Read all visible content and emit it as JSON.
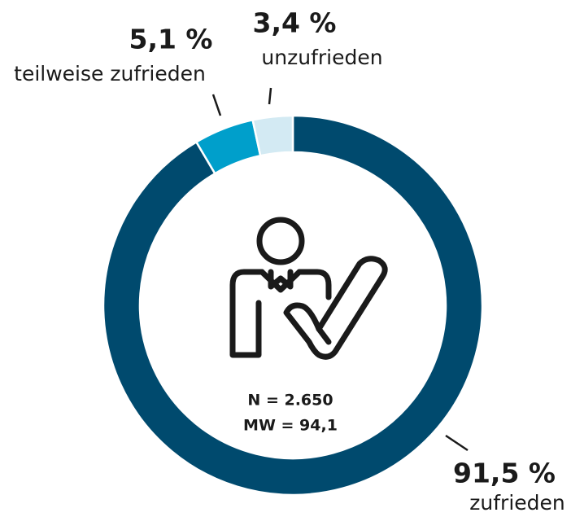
{
  "chart_data": {
    "type": "donut",
    "categories": [
      "zufrieden",
      "teilweise zufrieden",
      "unzufrieden"
    ],
    "values": [
      91.5,
      5.1,
      3.4
    ],
    "value_labels": [
      "91,5 %",
      "5,1 %",
      "3,4 %"
    ],
    "colors": [
      "#004a6e",
      "#009fcb",
      "#d3eaf3"
    ],
    "annotations": [
      "N = 2.650",
      "MW = 94,1"
    ]
  }
}
